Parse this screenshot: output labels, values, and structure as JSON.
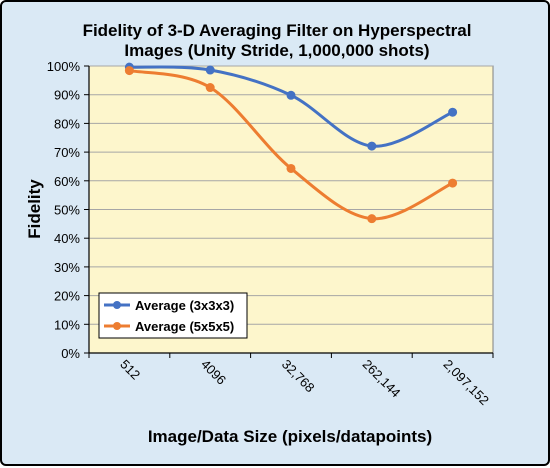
{
  "chart_data": {
    "type": "line",
    "title_lines": [
      "Fidelity of 3-D Averaging Filter on Hyperspectral",
      "Images (Unity Stride, 1,000,000 shots)"
    ],
    "xlabel": "Image/Data Size (pixels/datapoints)",
    "ylabel": "Fidelity",
    "categories": [
      "512",
      "4096",
      "32,768",
      "262,144",
      "2,097,152"
    ],
    "y_ticks": [
      "0%",
      "10%",
      "20%",
      "30%",
      "40%",
      "50%",
      "60%",
      "70%",
      "80%",
      "90%",
      "100%"
    ],
    "ylim": [
      0,
      100
    ],
    "grid": true,
    "smooth": true,
    "legend_position": "lower-left",
    "series": [
      {
        "name": "Average (3x3x3)",
        "color": "#4472c4",
        "values": [
          99.6,
          98.6,
          89.8,
          72.1,
          83.9
        ]
      },
      {
        "name": "Average (5x5x5)",
        "color": "#ed7d31",
        "values": [
          98.4,
          92.5,
          64.3,
          46.8,
          59.2
        ]
      }
    ],
    "plot_background": "#fdf6cc",
    "chart_background": "#dae9f5"
  }
}
